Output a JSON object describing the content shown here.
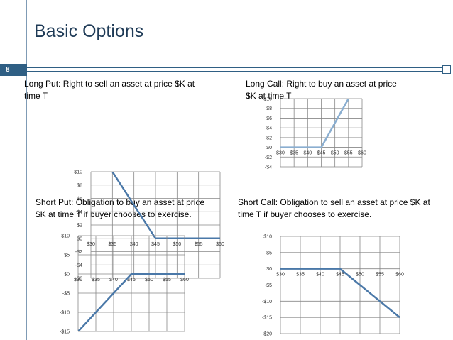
{
  "slide": {
    "title": "Basic Options",
    "slide_number": "8",
    "captions": {
      "long_put": [
        "Long Put: Right to sell an asset at price $K at",
        "time T"
      ],
      "long_call": [
        "Long Call: Right to buy an asset at price",
        "$K at time T"
      ],
      "short_put": [
        "Short Put: Obligation to buy an asset at price",
        "$K at time T if buyer chooses to exercise."
      ],
      "short_call": [
        "Short Call: Obligation to sell an asset at price $K at",
        "time T if buyer chooses to exercise."
      ]
    }
  },
  "chart_data": [
    {
      "id": "long-put",
      "type": "line",
      "x": [
        30,
        35,
        40,
        45,
        50,
        55,
        60
      ],
      "xticks": [
        "$30",
        "$35",
        "$40",
        "$45",
        "$50",
        "$55",
        "$60"
      ],
      "xlim": [
        30,
        60
      ],
      "yticks": [
        -6,
        -4,
        -2,
        0,
        2,
        4,
        6,
        8,
        10
      ],
      "ytick_labels": [
        "-$6",
        "-$4",
        "-$2",
        "$0",
        "$2",
        "$4",
        "$6",
        "$8",
        "$10"
      ],
      "ylim": [
        -6,
        10
      ],
      "series": [
        {
          "x": [
            30,
            35,
            40,
            45,
            50,
            55,
            60
          ],
          "values": [
            15,
            10,
            5,
            0,
            0,
            0,
            0
          ]
        }
      ],
      "grid": true,
      "line_color": "#4a78a8"
    },
    {
      "id": "long-call",
      "type": "line",
      "x": [
        30,
        35,
        40,
        45,
        50,
        55,
        60
      ],
      "xticks": [
        "$30",
        "$35",
        "$40",
        "$45",
        "$50",
        "$55",
        "$60"
      ],
      "xlim": [
        30,
        60
      ],
      "yticks": [
        -4,
        -2,
        0,
        2,
        4,
        6,
        8,
        10
      ],
      "ytick_labels": [
        "-$4",
        "-$2",
        "$0",
        "$2",
        "$4",
        "$6",
        "$8",
        "$10"
      ],
      "ylim": [
        -4,
        10
      ],
      "series": [
        {
          "x": [
            30,
            35,
            40,
            45,
            50,
            55,
            60
          ],
          "values": [
            0,
            0,
            0,
            0,
            5,
            10,
            15
          ]
        }
      ],
      "grid": true,
      "line_color": "#8aaed0"
    },
    {
      "id": "short-put",
      "type": "line",
      "x": [
        30,
        35,
        40,
        45,
        50,
        55,
        60
      ],
      "xticks": [
        "$30",
        "$35",
        "$40",
        "$45",
        "$50",
        "$55",
        "$60"
      ],
      "xlim": [
        30,
        60
      ],
      "yticks": [
        -15,
        -10,
        -5,
        0,
        5,
        10
      ],
      "ytick_labels": [
        "-$15",
        "-$10",
        "-$5",
        "$0",
        "$5",
        "$10"
      ],
      "ylim": [
        -15,
        10
      ],
      "series": [
        {
          "x": [
            30,
            35,
            40,
            45,
            50,
            55,
            60
          ],
          "values": [
            -15,
            -10,
            -5,
            0,
            0,
            0,
            0
          ]
        }
      ],
      "grid": true,
      "line_color": "#4a78a8"
    },
    {
      "id": "short-call",
      "type": "line",
      "x": [
        30,
        35,
        40,
        45,
        50,
        55,
        60
      ],
      "xticks": [
        "$30",
        "$35",
        "$40",
        "$45",
        "$50",
        "$55",
        "$60"
      ],
      "xlim": [
        30,
        60
      ],
      "yticks": [
        -20,
        -15,
        -10,
        -5,
        0,
        5,
        10
      ],
      "ytick_labels": [
        "-$20",
        "-$15",
        "-$10",
        "-$5",
        "$0",
        "$5",
        "$10"
      ],
      "ylim": [
        -20,
        10
      ],
      "series": [
        {
          "x": [
            30,
            35,
            40,
            45,
            50,
            55,
            60
          ],
          "values": [
            0,
            0,
            0,
            0,
            -5,
            -10,
            -15
          ]
        }
      ],
      "grid": true,
      "line_color": "#4a78a8"
    }
  ]
}
